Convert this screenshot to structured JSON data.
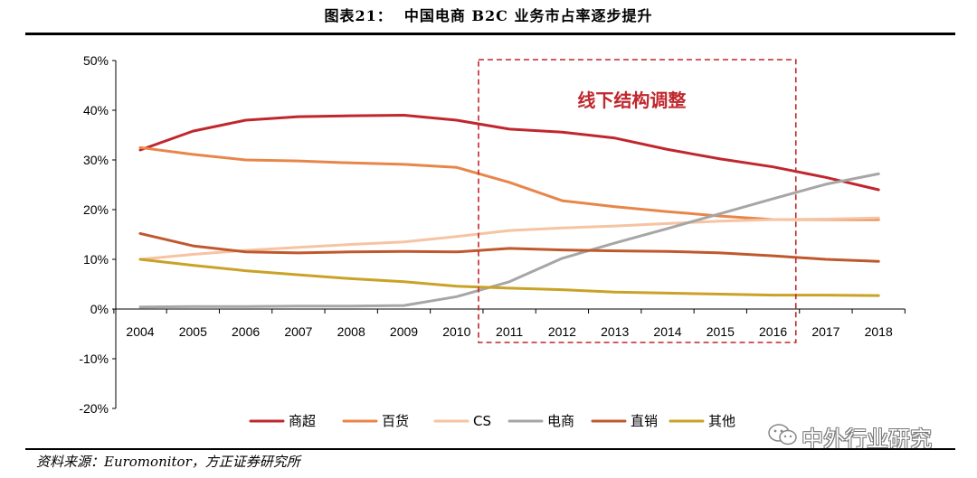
{
  "figure": {
    "title": "图表21：  中国电商 B2C 业务市占率逐步提升",
    "source": "资料来源：Euromonitor，方正证券研究所",
    "watermark": "中外行业研究"
  },
  "chart_data": {
    "type": "line",
    "title": "",
    "xlabel": "",
    "ylabel": "",
    "x": [
      "2004",
      "2005",
      "2006",
      "2007",
      "2008",
      "2009",
      "2010",
      "2011",
      "2012",
      "2013",
      "2014",
      "2015",
      "2016",
      "2017",
      "2018"
    ],
    "ylim": [
      -20,
      50
    ],
    "yticks": [
      -20,
      -10,
      0,
      10,
      20,
      30,
      40,
      50
    ],
    "ytick_labels": [
      "-20%",
      "-10%",
      "0%",
      "10%",
      "20%",
      "30%",
      "40%",
      "50%"
    ],
    "grid": false,
    "legend_position": "bottom",
    "series": [
      {
        "name": "商超",
        "color": "#c0272d",
        "values": [
          32.0,
          35.8,
          38.0,
          38.7,
          38.9,
          39.0,
          38.0,
          36.2,
          35.6,
          34.4,
          32.1,
          30.2,
          28.6,
          26.5,
          24.0
        ]
      },
      {
        "name": "百货",
        "color": "#e8864a",
        "values": [
          32.5,
          31.1,
          30.0,
          29.8,
          29.4,
          29.1,
          28.5,
          25.5,
          21.8,
          20.6,
          19.6,
          18.7,
          18.0,
          18.0,
          18.0
        ]
      },
      {
        "name": "CS",
        "color": "#f6c3a3",
        "values": [
          10.0,
          11.0,
          11.8,
          12.4,
          13.0,
          13.5,
          14.6,
          15.8,
          16.3,
          16.7,
          17.2,
          17.7,
          18.0,
          18.1,
          18.3
        ]
      },
      {
        "name": "电商",
        "color": "#a6a6a6",
        "values": [
          0.4,
          0.5,
          0.5,
          0.6,
          0.6,
          0.7,
          2.5,
          5.5,
          10.2,
          13.3,
          16.2,
          19.2,
          22.2,
          25.1,
          27.2
        ]
      },
      {
        "name": "直销",
        "color": "#c0582e",
        "values": [
          15.2,
          12.7,
          11.5,
          11.3,
          11.5,
          11.6,
          11.5,
          12.2,
          11.9,
          11.7,
          11.6,
          11.3,
          10.7,
          10.0,
          9.6
        ]
      },
      {
        "name": "其他",
        "color": "#c9a227",
        "values": [
          10.0,
          8.8,
          7.7,
          6.9,
          6.1,
          5.5,
          4.6,
          4.2,
          3.9,
          3.4,
          3.2,
          3.0,
          2.8,
          2.8,
          2.7
        ]
      }
    ],
    "highlight_box": {
      "label": "线下结构调整",
      "x_range": [
        "2011",
        "2016"
      ],
      "color": "#c0272d"
    }
  }
}
